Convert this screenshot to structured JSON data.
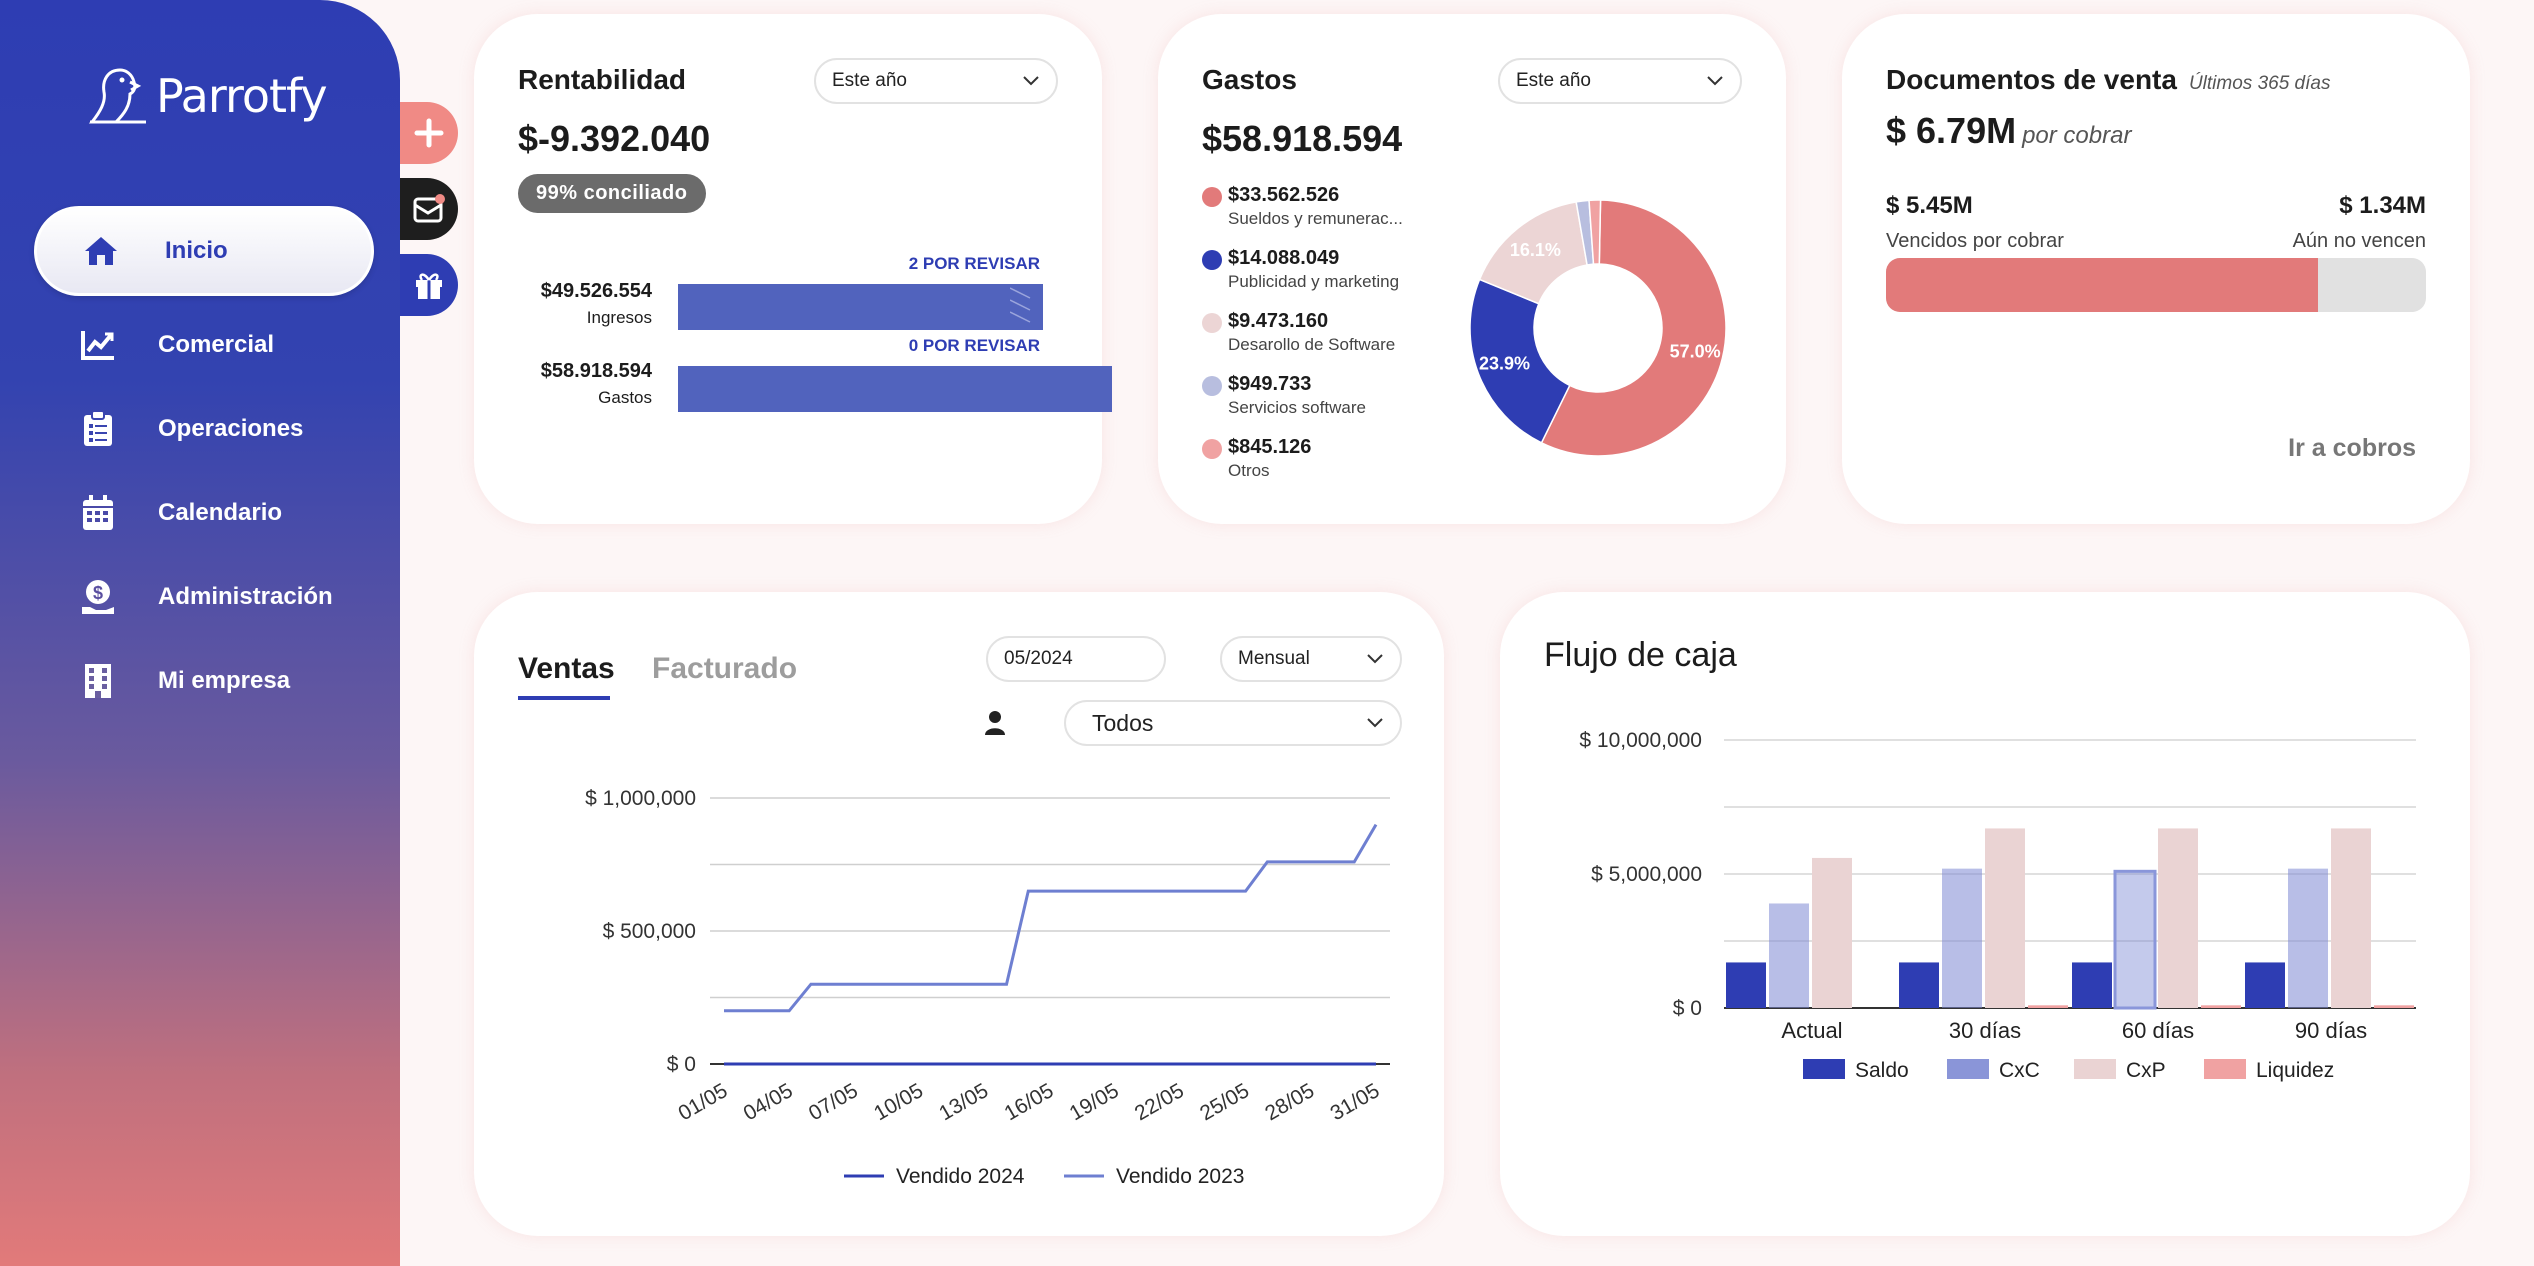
{
  "app": {
    "name": "Parrotfy"
  },
  "sidebar": {
    "items": [
      {
        "label": "Inicio",
        "icon": "home-icon",
        "active": true
      },
      {
        "label": "Comercial",
        "icon": "chart-line-icon"
      },
      {
        "label": "Operaciones",
        "icon": "clipboard-icon"
      },
      {
        "label": "Calendario",
        "icon": "calendar-icon"
      },
      {
        "label": "Administración",
        "icon": "money-hand-icon"
      },
      {
        "label": "Mi empresa",
        "icon": "building-icon"
      }
    ]
  },
  "actions": [
    {
      "icon": "plus-icon",
      "color": "#f08a85"
    },
    {
      "icon": "inbox-notification-icon",
      "color": "#1e1e1e"
    },
    {
      "icon": "gift-icon",
      "color": "#2e3db3"
    }
  ],
  "rentabilidad": {
    "title": "Rentabilidad",
    "period": "Este año",
    "amount": "$-9.392.040",
    "badge": "99% conciliado",
    "ingresos": {
      "value": "$49.526.554",
      "label": "Ingresos",
      "review": "2 POR REVISAR",
      "fraction": 0.84
    },
    "gastos": {
      "value": "$58.918.594",
      "label": "Gastos",
      "review": "0 POR REVISAR",
      "fraction": 1.0
    }
  },
  "gastos": {
    "title": "Gastos",
    "period": "Este año",
    "amount": "$58.918.594",
    "items": [
      {
        "value": "$33.562.526",
        "label": "Sueldos y remunerac...",
        "color": "#e27a7a"
      },
      {
        "value": "$14.088.049",
        "label": "Publicidad y marketing",
        "color": "#2e3db3"
      },
      {
        "value": "$9.473.160",
        "label": "Desarollo de Software",
        "color": "#ecd5d5"
      },
      {
        "value": "$949.733",
        "label": "Servicios software",
        "color": "#b8bedf"
      },
      {
        "value": "$845.126",
        "label": "Otros",
        "color": "#f0a2a2"
      }
    ],
    "donut_labels": [
      "57.0%",
      "23.9%",
      "16.1%"
    ],
    "chart_data": {
      "type": "pie",
      "labels": [
        "Sueldos y remuneraciones",
        "Publicidad y marketing",
        "Desarollo de Software",
        "Servicios software",
        "Otros"
      ],
      "values": [
        33562526,
        14088049,
        9473160,
        949733,
        845126
      ],
      "percent_labels": [
        "57.0%",
        "23.9%",
        "16.1%",
        "",
        ""
      ]
    }
  },
  "documentos": {
    "title": "Documentos de venta",
    "range": "Últimos 365 días",
    "amount": "$ 6.79M",
    "amount_suffix": "por cobrar",
    "vencidos": {
      "value": "$ 5.45M",
      "label": "Vencidos por cobrar"
    },
    "no_vencen": {
      "value": "$ 1.34M",
      "label": "Aún no vencen"
    },
    "fraction_vencidos": 0.8,
    "link": "Ir a cobros"
  },
  "ventas": {
    "tabs": [
      "Ventas",
      "Facturado"
    ],
    "month": "05/2024",
    "period": "Mensual",
    "seller": "Todos",
    "chart_data": {
      "type": "line",
      "x": [
        "01/05",
        "02/05",
        "03/05",
        "04/05",
        "05/05",
        "06/05",
        "07/05",
        "08/05",
        "09/05",
        "10/05",
        "11/05",
        "12/05",
        "13/05",
        "14/05",
        "15/05",
        "16/05",
        "17/05",
        "18/05",
        "19/05",
        "20/05",
        "21/05",
        "22/05",
        "23/05",
        "24/05",
        "25/05",
        "26/05",
        "27/05",
        "28/05",
        "29/05",
        "30/05",
        "31/05"
      ],
      "tick_labels": [
        "01/05",
        "04/05",
        "07/05",
        "10/05",
        "13/05",
        "16/05",
        "19/05",
        "22/05",
        "25/05",
        "28/05",
        "31/05"
      ],
      "series": [
        {
          "name": "Vendido 2024",
          "color": "#2e3db3",
          "values": [
            0,
            0,
            0,
            0,
            0,
            0,
            0,
            0,
            0,
            0,
            0,
            0,
            0,
            0,
            0,
            0,
            0,
            0,
            0,
            0,
            0,
            0,
            0,
            0,
            0,
            0,
            0,
            0,
            0,
            0,
            0
          ]
        },
        {
          "name": "Vendido 2023",
          "color": "#6e7fd1",
          "values": [
            200000,
            200000,
            200000,
            200000,
            300000,
            300000,
            300000,
            300000,
            300000,
            300000,
            300000,
            300000,
            300000,
            300000,
            650000,
            650000,
            650000,
            650000,
            650000,
            650000,
            650000,
            650000,
            650000,
            650000,
            650000,
            760000,
            760000,
            760000,
            760000,
            760000,
            900000
          ]
        }
      ],
      "y_ticks": [
        "$ 0",
        "$ 500,000",
        "$ 1,000,000"
      ],
      "ylim": [
        0,
        1000000
      ]
    }
  },
  "flujo": {
    "title": "Flujo de caja",
    "chart_data": {
      "type": "bar",
      "categories": [
        "Actual",
        "30 días",
        "60 días",
        "90 días"
      ],
      "series": [
        {
          "name": "Saldo",
          "color": "#2e3db3",
          "values": [
            1700000,
            1700000,
            1700000,
            1700000
          ]
        },
        {
          "name": "CxC",
          "color": "#7d89d4",
          "values": [
            3900000,
            5200000,
            5100000,
            5200000
          ]
        },
        {
          "name": "CxP",
          "color": "#ead3d3",
          "values": [
            5600000,
            6700000,
            6700000,
            6700000
          ]
        },
        {
          "name": "Liquidez",
          "color": "#f0a2a2",
          "values": [
            0,
            100000,
            100000,
            100000
          ]
        }
      ],
      "y_ticks": [
        "$ 0",
        "$ 5,000,000",
        "$ 10,000,000"
      ],
      "ylim": [
        0,
        10000000
      ]
    }
  }
}
